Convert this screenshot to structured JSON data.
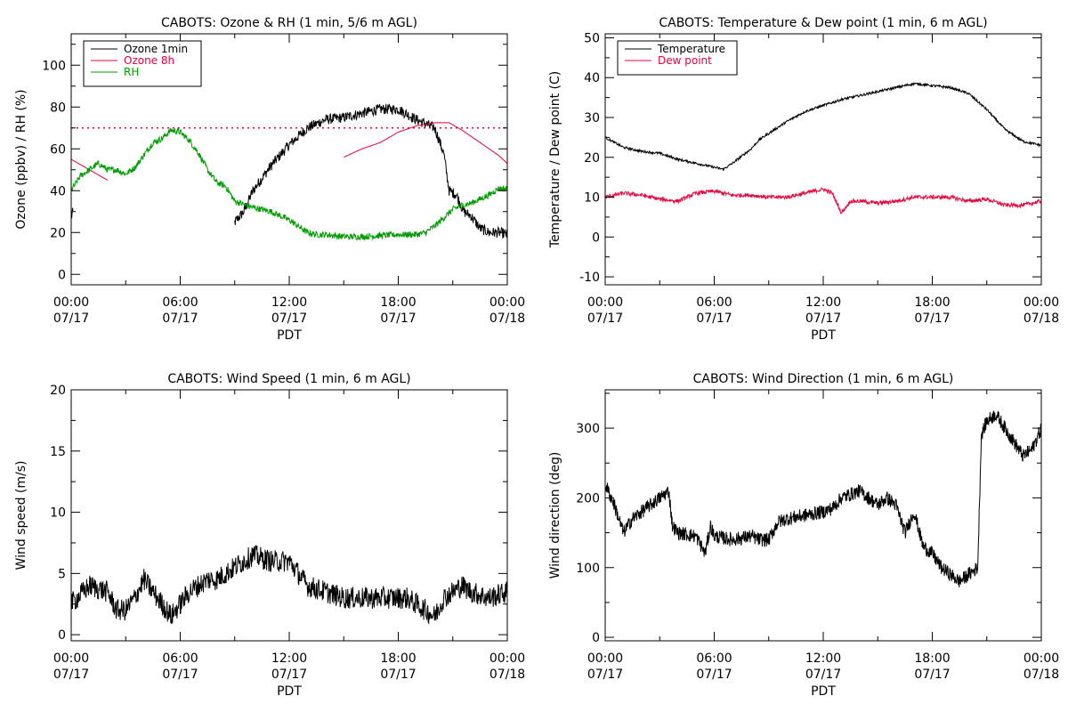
{
  "chart_data": [
    {
      "id": "ozone_rh",
      "type": "line",
      "title": "CABOTS: Ozone & RH (1 min, 5/6 m AGL)",
      "xlabel": "PDT",
      "ylabel": "Ozone (ppbv) / RH (%)",
      "xlim": [
        0,
        24
      ],
      "ylim": [
        -5,
        115
      ],
      "xticks": [
        {
          "x": 0,
          "time": "00:00",
          "date": "07/17"
        },
        {
          "x": 6,
          "time": "06:00",
          "date": "07/17"
        },
        {
          "x": 12,
          "time": "12:00",
          "date": "07/17"
        },
        {
          "x": 18,
          "time": "18:00",
          "date": "07/17"
        },
        {
          "x": 24,
          "time": "00:00",
          "date": "07/18"
        }
      ],
      "yticks": [
        0,
        20,
        40,
        60,
        80,
        100
      ],
      "reference_line": {
        "y": 70,
        "color": "#e8003a",
        "style": "dotted"
      },
      "legend": [
        {
          "label": "Ozone 1min",
          "color": "#000000"
        },
        {
          "label": "Ozone 8h",
          "color": "#e8003a"
        },
        {
          "label": "RH",
          "color": "#009a00"
        }
      ],
      "series": [
        {
          "name": "Ozone 1min",
          "color": "#000000",
          "noise": 2.5,
          "points": [
            [
              0,
              27
            ],
            [
              0.1,
              30
            ]
          ],
          "points2": [
            [
              9,
              25
            ],
            [
              9.5,
              30
            ],
            [
              10,
              40
            ],
            [
              10.5,
              46
            ],
            [
              11,
              52
            ],
            [
              12,
              62
            ],
            [
              13,
              70
            ],
            [
              14,
              74
            ],
            [
              15,
              75
            ],
            [
              16,
              77
            ],
            [
              17,
              79
            ],
            [
              18,
              79
            ],
            [
              19,
              74
            ],
            [
              20,
              70
            ],
            [
              20.5,
              58
            ],
            [
              20.8,
              40
            ],
            [
              21.2,
              38
            ],
            [
              21.6,
              30
            ],
            [
              22,
              28
            ],
            [
              22.5,
              22
            ],
            [
              23,
              20
            ],
            [
              23.6,
              20
            ],
            [
              24,
              19
            ]
          ]
        },
        {
          "name": "Ozone 8h",
          "color": "#e8003a",
          "noise": 0,
          "points": [
            [
              0,
              55
            ],
            [
              1,
              50
            ],
            [
              2,
              45
            ]
          ],
          "points2": [
            [
              15,
              56
            ],
            [
              16,
              60
            ],
            [
              17,
              63
            ],
            [
              18,
              68
            ],
            [
              19,
              71
            ],
            [
              20,
              72.5
            ],
            [
              20.8,
              72.5
            ],
            [
              21.5,
              69
            ],
            [
              22.5,
              63
            ],
            [
              23.5,
              57
            ],
            [
              24,
              53
            ]
          ]
        },
        {
          "name": "RH",
          "color": "#009a00",
          "noise": 1.5,
          "points": [
            [
              0,
              40
            ],
            [
              0.5,
              47
            ],
            [
              1,
              50
            ],
            [
              1.5,
              53
            ],
            [
              2,
              50
            ],
            [
              2.5,
              50
            ],
            [
              3,
              48
            ],
            [
              3.5,
              51
            ],
            [
              4,
              57
            ],
            [
              4.5,
              63
            ],
            [
              5,
              65
            ],
            [
              5.5,
              69
            ],
            [
              6,
              68
            ],
            [
              6.5,
              64
            ],
            [
              7,
              58
            ],
            [
              7.5,
              50
            ],
            [
              8,
              44
            ],
            [
              8.5,
              42
            ],
            [
              9,
              35
            ],
            [
              10,
              32
            ],
            [
              10.5,
              31
            ],
            [
              11,
              30
            ],
            [
              11.5,
              28
            ],
            [
              12,
              26
            ],
            [
              12.5,
              23
            ],
            [
              13,
              20
            ],
            [
              13.5,
              19
            ],
            [
              14,
              19
            ],
            [
              15,
              18
            ],
            [
              16,
              18
            ],
            [
              17,
              18.5
            ],
            [
              18,
              19
            ],
            [
              19,
              19
            ],
            [
              19.5,
              20
            ],
            [
              20,
              23
            ],
            [
              20.5,
              27
            ],
            [
              21,
              31
            ],
            [
              21.5,
              33
            ],
            [
              22,
              34
            ],
            [
              22.5,
              36
            ],
            [
              23,
              38
            ],
            [
              23.5,
              41
            ],
            [
              24,
              41
            ]
          ]
        }
      ]
    },
    {
      "id": "temp_dew",
      "type": "line",
      "title": "CABOTS: Temperature & Dew point (1 min, 6 m AGL)",
      "xlabel": "PDT",
      "ylabel": "Temperature / Dew point (C)",
      "xlim": [
        0,
        24
      ],
      "ylim": [
        -12,
        51
      ],
      "xticks": [
        {
          "x": 0,
          "time": "00:00",
          "date": "07/17"
        },
        {
          "x": 6,
          "time": "06:00",
          "date": "07/17"
        },
        {
          "x": 12,
          "time": "12:00",
          "date": "07/17"
        },
        {
          "x": 18,
          "time": "18:00",
          "date": "07/17"
        },
        {
          "x": 24,
          "time": "00:00",
          "date": "07/18"
        }
      ],
      "yticks": [
        -10,
        0,
        10,
        20,
        30,
        40,
        50
      ],
      "legend": [
        {
          "label": "Temperature",
          "color": "#000000"
        },
        {
          "label": "Dew point",
          "color": "#e8003a"
        }
      ],
      "series": [
        {
          "name": "Temperature",
          "color": "#000000",
          "noise": 0.3,
          "points": [
            [
              0,
              25
            ],
            [
              1,
              22.5
            ],
            [
              2,
              21.5
            ],
            [
              3,
              21
            ],
            [
              4,
              19.5
            ],
            [
              5,
              18.5
            ],
            [
              6,
              17.5
            ],
            [
              6.5,
              17
            ],
            [
              7,
              18.5
            ],
            [
              8,
              22
            ],
            [
              8.5,
              24.5
            ],
            [
              9,
              26
            ],
            [
              10,
              29
            ],
            [
              11,
              31.5
            ],
            [
              12,
              33
            ],
            [
              13,
              34.5
            ],
            [
              14,
              35.5
            ],
            [
              15,
              36.5
            ],
            [
              16,
              37.5
            ],
            [
              17,
              38.5
            ],
            [
              18,
              38
            ],
            [
              19,
              37.5
            ],
            [
              20,
              36
            ],
            [
              21,
              32
            ],
            [
              22,
              27
            ],
            [
              23,
              24
            ],
            [
              24,
              23
            ]
          ]
        },
        {
          "name": "Dew point",
          "color": "#e8003a",
          "noise": 0.5,
          "points": [
            [
              0,
              10
            ],
            [
              1,
              11
            ],
            [
              2,
              10.5
            ],
            [
              3,
              9.5
            ],
            [
              4,
              9
            ],
            [
              5,
              11
            ],
            [
              6,
              11.5
            ],
            [
              7,
              10.5
            ],
            [
              8,
              10.5
            ],
            [
              9,
              10
            ],
            [
              10,
              10
            ],
            [
              11,
              11
            ],
            [
              12,
              12
            ],
            [
              12.5,
              11
            ],
            [
              13,
              6
            ],
            [
              13.5,
              9
            ],
            [
              14,
              9
            ],
            [
              15,
              8.5
            ],
            [
              16,
              9
            ],
            [
              17,
              10
            ],
            [
              18,
              10
            ],
            [
              19,
              10
            ],
            [
              20,
              9
            ],
            [
              21,
              9.5
            ],
            [
              22,
              8
            ],
            [
              23,
              8
            ],
            [
              24,
              9
            ]
          ]
        }
      ]
    },
    {
      "id": "wind_speed",
      "type": "line",
      "title": "CABOTS: Wind Speed (1 min, 6 m AGL)",
      "xlabel": "PDT",
      "ylabel": "Wind speed (m/s)",
      "xlim": [
        0,
        24
      ],
      "ylim": [
        -0.5,
        20
      ],
      "xticks": [
        {
          "x": 0,
          "time": "00:00",
          "date": "07/17"
        },
        {
          "x": 6,
          "time": "06:00",
          "date": "07/17"
        },
        {
          "x": 12,
          "time": "12:00",
          "date": "07/17"
        },
        {
          "x": 18,
          "time": "18:00",
          "date": "07/17"
        },
        {
          "x": 24,
          "time": "00:00",
          "date": "07/18"
        }
      ],
      "yticks": [
        0,
        5,
        10,
        15,
        20
      ],
      "legend": [],
      "series": [
        {
          "name": "",
          "color": "#000000",
          "noise": 0.9,
          "points": [
            [
              0,
              2.5
            ],
            [
              1,
              4
            ],
            [
              2,
              3.5
            ],
            [
              2.5,
              2
            ],
            [
              3,
              2
            ],
            [
              3.5,
              3
            ],
            [
              4,
              4.5
            ],
            [
              4.5,
              3.5
            ],
            [
              5,
              2.5
            ],
            [
              5.5,
              1.5
            ],
            [
              6,
              2.5
            ],
            [
              6.5,
              3.5
            ],
            [
              7,
              4
            ],
            [
              7.5,
              4.5
            ],
            [
              8,
              4.5
            ],
            [
              8.5,
              5
            ],
            [
              9,
              5.5
            ],
            [
              9.5,
              6
            ],
            [
              10,
              6.5
            ],
            [
              11,
              6
            ],
            [
              12,
              6
            ],
            [
              12.5,
              5
            ],
            [
              13,
              4
            ],
            [
              14,
              3.5
            ],
            [
              15,
              3
            ],
            [
              16,
              3
            ],
            [
              17,
              3
            ],
            [
              18,
              3
            ],
            [
              18.5,
              3
            ],
            [
              19,
              2.5
            ],
            [
              20,
              1.5
            ],
            [
              20.5,
              3
            ],
            [
              21,
              3.5
            ],
            [
              21.5,
              4
            ],
            [
              22,
              3.5
            ],
            [
              23,
              3
            ],
            [
              24,
              3.5
            ]
          ]
        }
      ]
    },
    {
      "id": "wind_dir",
      "type": "line",
      "title": "CABOTS: Wind Direction (1 min, 6 m AGL)",
      "xlabel": "PDT",
      "ylabel": "Wind direction (deg)",
      "xlim": [
        0,
        24
      ],
      "ylim": [
        -5,
        355
      ],
      "xticks": [
        {
          "x": 0,
          "time": "00:00",
          "date": "07/17"
        },
        {
          "x": 6,
          "time": "06:00",
          "date": "07/17"
        },
        {
          "x": 12,
          "time": "12:00",
          "date": "07/17"
        },
        {
          "x": 18,
          "time": "18:00",
          "date": "07/17"
        },
        {
          "x": 24,
          "time": "00:00",
          "date": "07/18"
        }
      ],
      "yticks": [
        0,
        100,
        200,
        300
      ],
      "legend": [],
      "series": [
        {
          "name": "",
          "color": "#000000",
          "noise": 10,
          "points": [
            [
              0,
              220
            ],
            [
              0.5,
              190
            ],
            [
              1,
              150
            ],
            [
              1.5,
              170
            ],
            [
              2,
              180
            ],
            [
              2.5,
              190
            ],
            [
              3,
              200
            ],
            [
              3.5,
              210
            ],
            [
              3.7,
              160
            ],
            [
              4,
              150
            ],
            [
              5,
              145
            ],
            [
              5.5,
              120
            ],
            [
              5.8,
              160
            ],
            [
              6,
              145
            ],
            [
              7,
              140
            ],
            [
              8,
              145
            ],
            [
              8.5,
              140
            ],
            [
              9,
              140
            ],
            [
              9.5,
              165
            ],
            [
              10,
              170
            ],
            [
              11,
              175
            ],
            [
              12,
              180
            ],
            [
              12.5,
              185
            ],
            [
              13,
              200
            ],
            [
              14,
              210
            ],
            [
              14.5,
              200
            ],
            [
              15,
              190
            ],
            [
              15.5,
              200
            ],
            [
              16,
              190
            ],
            [
              16.5,
              150
            ],
            [
              17,
              180
            ],
            [
              17.5,
              130
            ],
            [
              18,
              120
            ],
            [
              18.5,
              100
            ],
            [
              19,
              90
            ],
            [
              19.5,
              80
            ],
            [
              20,
              90
            ],
            [
              20.5,
              100
            ],
            [
              20.7,
              290
            ],
            [
              21,
              310
            ],
            [
              21.5,
              320
            ],
            [
              22,
              300
            ],
            [
              22.5,
              280
            ],
            [
              23,
              260
            ],
            [
              23.5,
              270
            ],
            [
              24,
              300
            ]
          ]
        }
      ]
    }
  ]
}
